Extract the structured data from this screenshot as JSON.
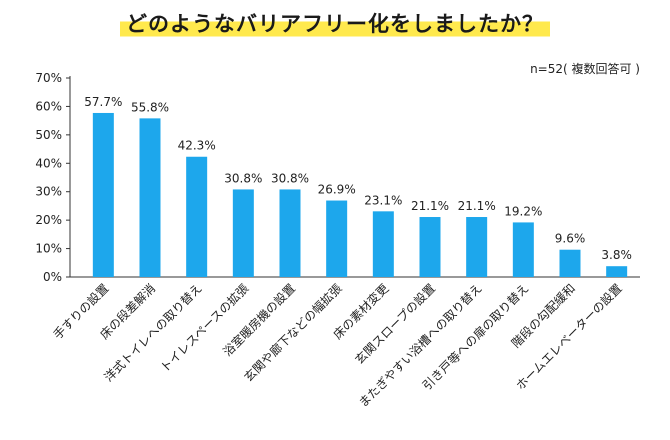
{
  "header": {
    "title": "どのようなバリアフリー化をしましたか？",
    "note": "n=52( 複数回答可 )"
  },
  "colors": {
    "bar": "#1da7ec",
    "highlight": "#ffe94d",
    "axis": "#333333"
  },
  "chart_data": {
    "type": "bar",
    "title": "どのようなバリアフリー化をしましたか？",
    "xlabel": "",
    "ylabel": "",
    "ylim": [
      0,
      70
    ],
    "yticks": [
      0,
      10,
      20,
      30,
      40,
      50,
      60,
      70
    ],
    "ytick_labels": [
      "0%",
      "10%",
      "20%",
      "30%",
      "40%",
      "50%",
      "60%",
      "70%"
    ],
    "grid": false,
    "categories": [
      "手すりの設置",
      "床の段差解消",
      "洋式トイレへの取り替え",
      "トイレスペースの拡張",
      "浴室暖房機の設置",
      "玄関や廊下などの幅拡張",
      "床の素材変更",
      "玄関スロープの設置",
      "またぎやすい浴槽への取り替え",
      "引き戸等への扉の取り替え",
      "階段の勾配緩和",
      "ホームエレベーターの設置"
    ],
    "values": [
      57.7,
      55.8,
      42.3,
      30.8,
      30.8,
      26.9,
      23.1,
      21.1,
      21.1,
      19.2,
      9.6,
      3.8
    ],
    "value_labels": [
      "57.7%",
      "55.8%",
      "42.3%",
      "30.8%",
      "30.8%",
      "26.9%",
      "23.1%",
      "21.1%",
      "21.1%",
      "19.2%",
      "9.6%",
      "3.8%"
    ]
  }
}
